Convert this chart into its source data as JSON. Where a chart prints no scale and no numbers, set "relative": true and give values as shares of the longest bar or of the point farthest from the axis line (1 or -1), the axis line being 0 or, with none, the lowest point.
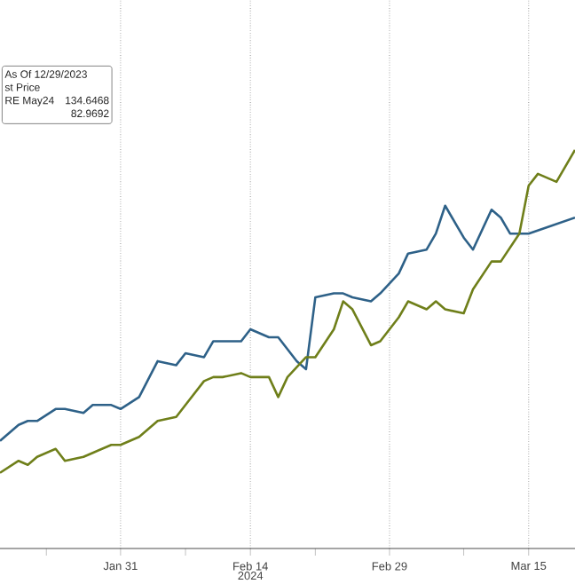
{
  "chart_data": {
    "type": "line",
    "relative": true,
    "grid": true,
    "xlabel": "2024",
    "xlim": [
      "2024-01-18",
      "2024-03-20"
    ],
    "xticks": [
      {
        "value": "2024-01-23",
        "label": null
      },
      {
        "value": "2024-01-31",
        "label": "Jan 31"
      },
      {
        "value": "2024-02-07",
        "label": null
      },
      {
        "value": "2024-02-14",
        "label": "Feb 14"
      },
      {
        "value": "2024-02-21",
        "label": null
      },
      {
        "value": "2024-02-29",
        "label": "Feb 29"
      },
      {
        "value": "2024-03-08",
        "label": null
      },
      {
        "value": "2024-03-15",
        "label": "Mar 15"
      }
    ],
    "annotations": [
      "As Of 12/29/2023",
      "st Price",
      "RE May24",
      "134.6468",
      "82.9692"
    ],
    "series": [
      {
        "color": "#2e6188",
        "x": [
          "2024-01-18",
          "2024-01-20",
          "2024-01-21",
          "2024-01-22",
          "2024-01-24",
          "2024-01-25",
          "2024-01-27",
          "2024-01-28",
          "2024-01-30",
          "2024-01-31",
          "2024-02-02",
          "2024-02-04",
          "2024-02-06",
          "2024-02-07",
          "2024-02-09",
          "2024-02-10",
          "2024-02-11",
          "2024-02-13",
          "2024-02-14",
          "2024-02-16",
          "2024-02-17",
          "2024-02-18",
          "2024-02-19",
          "2024-02-20",
          "2024-02-21",
          "2024-02-23",
          "2024-02-24",
          "2024-02-25",
          "2024-02-27",
          "2024-02-28",
          "2024-03-01",
          "2024-03-02",
          "2024-03-04",
          "2024-03-05",
          "2024-03-06",
          "2024-03-08",
          "2024-03-09",
          "2024-03-11",
          "2024-03-12",
          "2024-03-13",
          "2024-03-15",
          "2024-03-20"
        ],
        "values": [
          0.27,
          0.31,
          0.32,
          0.32,
          0.35,
          0.35,
          0.34,
          0.36,
          0.36,
          0.35,
          0.38,
          0.47,
          0.46,
          0.49,
          0.48,
          0.52,
          0.52,
          0.52,
          0.55,
          0.53,
          0.53,
          0.5,
          0.47,
          0.45,
          0.63,
          0.64,
          0.64,
          0.63,
          0.62,
          0.64,
          0.69,
          0.74,
          0.75,
          0.79,
          0.86,
          0.78,
          0.75,
          0.85,
          0.83,
          0.79,
          0.79,
          0.83
        ]
      },
      {
        "color": "#6f7f1a",
        "x": [
          "2024-01-18",
          "2024-01-20",
          "2024-01-21",
          "2024-01-22",
          "2024-01-24",
          "2024-01-25",
          "2024-01-27",
          "2024-01-28",
          "2024-01-30",
          "2024-01-31",
          "2024-02-02",
          "2024-02-03",
          "2024-02-04",
          "2024-02-06",
          "2024-02-07",
          "2024-02-09",
          "2024-02-10",
          "2024-02-11",
          "2024-02-13",
          "2024-02-14",
          "2024-02-16",
          "2024-02-17",
          "2024-02-18",
          "2024-02-20",
          "2024-02-21",
          "2024-02-23",
          "2024-02-24",
          "2024-02-25",
          "2024-02-27",
          "2024-02-28",
          "2024-03-01",
          "2024-03-02",
          "2024-03-04",
          "2024-03-05",
          "2024-03-06",
          "2024-03-08",
          "2024-03-09",
          "2024-03-11",
          "2024-03-12",
          "2024-03-14",
          "2024-03-15",
          "2024-03-16",
          "2024-03-18",
          "2024-03-20"
        ],
        "values": [
          0.19,
          0.22,
          0.21,
          0.23,
          0.25,
          0.22,
          0.23,
          0.24,
          0.26,
          0.26,
          0.28,
          0.3,
          0.32,
          0.33,
          0.36,
          0.42,
          0.43,
          0.43,
          0.44,
          0.43,
          0.43,
          0.38,
          0.43,
          0.48,
          0.48,
          0.55,
          0.62,
          0.6,
          0.51,
          0.52,
          0.58,
          0.62,
          0.6,
          0.62,
          0.6,
          0.59,
          0.65,
          0.72,
          0.72,
          0.79,
          0.91,
          0.94,
          0.92,
          1
        ]
      }
    ]
  }
}
